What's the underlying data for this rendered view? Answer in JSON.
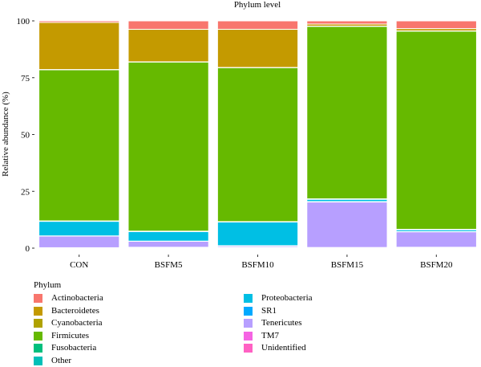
{
  "chart_data": {
    "type": "stacked-bar",
    "title": "Phylum level",
    "xlabel": "",
    "ylabel": "Relative abundance (%)",
    "ylim": [
      0,
      100
    ],
    "yticks": [
      0,
      25,
      50,
      75,
      100
    ],
    "categories": [
      "CON",
      "BSFM5",
      "BSFM10",
      "BSFM15",
      "BSFM20"
    ],
    "legend_title": "Phylum",
    "legend_placement": "bottom",
    "grid": false,
    "series": [
      {
        "name": "Unidentified",
        "color": "#FF61C3",
        "values": [
          0.2,
          0.3,
          0.3,
          0.3,
          0.3
        ]
      },
      {
        "name": "TM7",
        "color": "#F564E3",
        "values": [
          0.0,
          0.1,
          0.1,
          0.0,
          0.1
        ]
      },
      {
        "name": "Tenericutes",
        "color": "#B79FFF",
        "values": [
          5.1,
          2.6,
          0.6,
          20.0,
          6.8
        ]
      },
      {
        "name": "SR1",
        "color": "#00A9FF",
        "values": [
          0.1,
          0.1,
          0.1,
          0.2,
          0.1
        ]
      },
      {
        "name": "Proteobacteria",
        "color": "#00BFE4",
        "values": [
          6.4,
          4.2,
          10.4,
          1.0,
          0.8
        ]
      },
      {
        "name": "Other",
        "color": "#00C0B8",
        "values": [
          0.1,
          0.1,
          0.1,
          0.1,
          0.1
        ]
      },
      {
        "name": "Fusobacteria",
        "color": "#00BF7D",
        "values": [
          0.1,
          0.1,
          0.1,
          0.1,
          0.1
        ]
      },
      {
        "name": "Firmicutes",
        "color": "#66B900",
        "values": [
          66.5,
          74.4,
          67.8,
          75.9,
          87.2
        ]
      },
      {
        "name": "Cyanobacteria",
        "color": "#B0A200",
        "values": [
          0.1,
          0.1,
          0.1,
          0.1,
          0.1
        ]
      },
      {
        "name": "Bacteroidetes",
        "color": "#C49A00",
        "values": [
          20.7,
          14.3,
          16.8,
          0.9,
          1.0
        ]
      },
      {
        "name": "Actinobacteria",
        "color": "#F8766D",
        "values": [
          0.7,
          3.7,
          3.7,
          1.4,
          3.4
        ]
      }
    ],
    "legend_left": [
      "Actinobacteria",
      "Bacteroidetes",
      "Cyanobacteria",
      "Firmicutes",
      "Fusobacteria",
      "Other"
    ],
    "legend_right": [
      "Proteobacteria",
      "SR1",
      "Tenericutes",
      "TM7",
      "Unidentified"
    ]
  }
}
